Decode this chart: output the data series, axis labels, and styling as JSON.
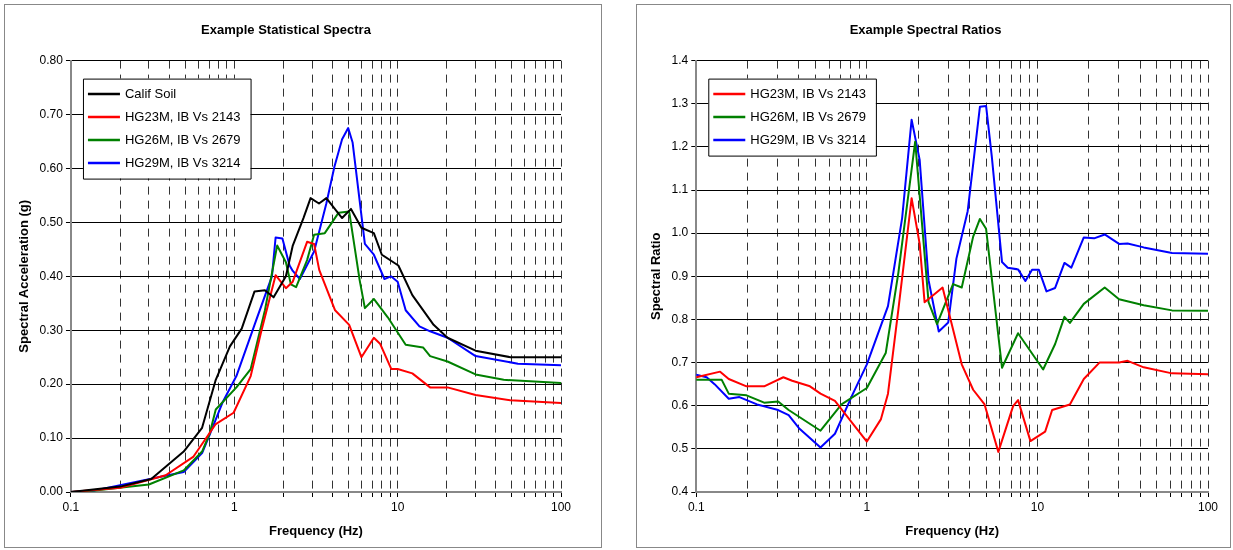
{
  "chart_data": [
    {
      "type": "line",
      "title": "Example Statistical Spectra",
      "xlabel": "Frequency (Hz)",
      "ylabel": "Spectral Acceleration (g)",
      "log": "x",
      "grid": true,
      "legend": "top left",
      "marker": "none",
      "line_style": "solid",
      "xlim": [
        0.1,
        100
      ],
      "xticks": [
        0.1,
        {
          "value": 0.2,
          "label": null
        },
        {
          "value": 0.3,
          "label": null
        },
        {
          "value": 0.4,
          "label": null
        },
        {
          "value": 0.5,
          "label": null
        },
        {
          "value": 0.6,
          "label": null
        },
        {
          "value": 0.7,
          "label": null
        },
        {
          "value": 0.8,
          "label": null
        },
        {
          "value": 0.9,
          "label": null
        },
        1,
        {
          "value": 2,
          "label": null
        },
        {
          "value": 3,
          "label": null
        },
        {
          "value": 4,
          "label": null
        },
        {
          "value": 5,
          "label": null
        },
        {
          "value": 6,
          "label": null
        },
        {
          "value": 7,
          "label": null
        },
        {
          "value": 8,
          "label": null
        },
        {
          "value": 9,
          "label": null
        },
        10,
        {
          "value": 20,
          "label": null
        },
        {
          "value": 30,
          "label": null
        },
        {
          "value": 40,
          "label": null
        },
        {
          "value": 50,
          "label": null
        },
        {
          "value": 60,
          "label": null
        },
        {
          "value": 70,
          "label": null
        },
        {
          "value": 80,
          "label": null
        },
        {
          "value": 90,
          "label": null
        },
        100
      ],
      "ylim": [
        0,
        0.8
      ],
      "yticks": [
        {
          "value": 0,
          "label": "0.00"
        },
        {
          "value": 0.1,
          "label": "0.10"
        },
        {
          "value": 0.2,
          "label": "0.20"
        },
        {
          "value": 0.3,
          "label": "0.30"
        },
        {
          "value": 0.4,
          "label": "0.40"
        },
        {
          "value": 0.5,
          "label": "0.50"
        },
        {
          "value": 0.6,
          "label": "0.60"
        },
        {
          "value": 0.7,
          "label": "0.70"
        },
        {
          "value": 0.8,
          "label": "0.80"
        }
      ],
      "series": [
        {
          "name": "Calif Soil",
          "color": "#000000",
          "x": [
            0.1,
            0.2,
            0.31,
            0.49,
            0.635,
            0.77,
            0.94,
            1.11,
            1.33,
            1.54,
            1.74,
            2.07,
            2.28,
            2.65,
            2.93,
            3.3,
            3.66,
            4.57,
            5.18,
            6.0,
            7.15,
            8.0,
            10.1,
            12.3,
            16.6,
            20.2,
            30,
            49,
            100
          ],
          "values": [
            0,
            0.01,
            0.024,
            0.075,
            0.119,
            0.208,
            0.27,
            0.303,
            0.372,
            0.374,
            0.361,
            0.4,
            0.457,
            0.508,
            0.545,
            0.535,
            0.545,
            0.508,
            0.525,
            0.49,
            0.48,
            0.44,
            0.42,
            0.365,
            0.31,
            0.286,
            0.262,
            0.25,
            0.25
          ]
        },
        {
          "name": "HG23M, IB Vs 2143",
          "color": "#ff0000",
          "x": [
            0.1,
            0.2,
            0.38,
            0.56,
            0.77,
            0.99,
            1.26,
            1.46,
            1.79,
            2.07,
            2.28,
            2.79,
            3.08,
            3.31,
            4.14,
            5.05,
            6.0,
            7.15,
            7.8,
            9.15,
            10,
            12.3,
            15.8,
            20.2,
            30,
            49,
            100
          ],
          "values": [
            0,
            0.008,
            0.031,
            0.065,
            0.126,
            0.147,
            0.215,
            0.297,
            0.402,
            0.378,
            0.39,
            0.464,
            0.46,
            0.412,
            0.337,
            0.31,
            0.25,
            0.286,
            0.275,
            0.228,
            0.228,
            0.22,
            0.194,
            0.194,
            0.18,
            0.17,
            0.165
          ]
        },
        {
          "name": "HG26M, IB Vs 2679",
          "color": "#008000",
          "x": [
            0.1,
            0.14,
            0.3,
            0.49,
            0.635,
            0.706,
            0.77,
            1.03,
            1.26,
            1.54,
            1.83,
            2.07,
            2.22,
            2.39,
            2.79,
            3.08,
            3.58,
            4.35,
            5.05,
            5.86,
            6.3,
            7.15,
            8.7,
            11.2,
            14.3,
            15.8,
            20.2,
            30,
            44.6,
            100
          ],
          "values": [
            0,
            0.003,
            0.014,
            0.04,
            0.075,
            0.108,
            0.153,
            0.194,
            0.228,
            0.337,
            0.457,
            0.426,
            0.385,
            0.38,
            0.43,
            0.477,
            0.48,
            0.518,
            0.52,
            0.392,
            0.341,
            0.358,
            0.324,
            0.273,
            0.268,
            0.252,
            0.242,
            0.218,
            0.208,
            0.202
          ]
        },
        {
          "name": "HG29M, IB Vs 3214",
          "color": "#0000ff",
          "x": [
            0.1,
            0.14,
            0.49,
            0.635,
            0.706,
            0.85,
            1.03,
            1.33,
            1.7,
            1.79,
            1.97,
            2.18,
            2.28,
            2.52,
            3.08,
            3.66,
            4.1,
            4.57,
            4.98,
            5.3,
            6.3,
            7.15,
            8.3,
            9.1,
            10,
            11.2,
            13.6,
            15.8,
            20.2,
            30,
            54.5,
            100
          ],
          "values": [
            0,
            0.003,
            0.037,
            0.072,
            0.106,
            0.167,
            0.215,
            0.31,
            0.4,
            0.472,
            0.47,
            0.42,
            0.41,
            0.395,
            0.446,
            0.535,
            0.603,
            0.654,
            0.675,
            0.648,
            0.46,
            0.44,
            0.395,
            0.4,
            0.39,
            0.337,
            0.307,
            0.298,
            0.286,
            0.252,
            0.238,
            0.235
          ]
        }
      ]
    },
    {
      "type": "line",
      "title": "Example Spectral Ratios",
      "xlabel": "Frequency (Hz)",
      "ylabel": "Spectral Ratio",
      "log": "x",
      "grid": true,
      "legend": "top left",
      "marker": "none",
      "line_style": "solid",
      "xlim": [
        0.1,
        100
      ],
      "xticks": [
        0.1,
        {
          "value": 0.2,
          "label": null
        },
        {
          "value": 0.3,
          "label": null
        },
        {
          "value": 0.4,
          "label": null
        },
        {
          "value": 0.5,
          "label": null
        },
        {
          "value": 0.6,
          "label": null
        },
        {
          "value": 0.7,
          "label": null
        },
        {
          "value": 0.8,
          "label": null
        },
        {
          "value": 0.9,
          "label": null
        },
        1,
        {
          "value": 2,
          "label": null
        },
        {
          "value": 3,
          "label": null
        },
        {
          "value": 4,
          "label": null
        },
        {
          "value": 5,
          "label": null
        },
        {
          "value": 6,
          "label": null
        },
        {
          "value": 7,
          "label": null
        },
        {
          "value": 8,
          "label": null
        },
        {
          "value": 9,
          "label": null
        },
        10,
        {
          "value": 20,
          "label": null
        },
        {
          "value": 30,
          "label": null
        },
        {
          "value": 40,
          "label": null
        },
        {
          "value": 50,
          "label": null
        },
        {
          "value": 60,
          "label": null
        },
        {
          "value": 70,
          "label": null
        },
        {
          "value": 80,
          "label": null
        },
        {
          "value": 90,
          "label": null
        },
        100
      ],
      "ylim": [
        0.4,
        1.4
      ],
      "yticks": [
        0.4,
        0.5,
        0.6,
        0.7,
        0.8,
        0.9,
        {
          "value": 1,
          "label": "1.0"
        },
        1.1,
        1.2,
        1.3,
        1.4
      ],
      "series": [
        {
          "name": "HG23M, IB Vs 2143",
          "color": "#ff0000",
          "x": [
            0.1,
            0.138,
            0.155,
            0.197,
            0.25,
            0.324,
            0.365,
            0.464,
            0.535,
            0.65,
            1.0,
            1.21,
            1.33,
            1.53,
            1.83,
            2.04,
            2.18,
            2.78,
            3.6,
            4.2,
            4.9,
            5.9,
            7.2,
            7.7,
            9.1,
            11.1,
            12.2,
            15.5,
            18.7,
            23.1,
            30.1,
            33.8,
            42,
            61.5,
            100
          ],
          "values": [
            0.666,
            0.679,
            0.662,
            0.645,
            0.645,
            0.666,
            0.658,
            0.645,
            0.628,
            0.611,
            0.517,
            0.569,
            0.628,
            0.823,
            1.081,
            0.975,
            0.84,
            0.874,
            0.696,
            0.637,
            0.603,
            0.493,
            0.599,
            0.613,
            0.518,
            0.54,
            0.59,
            0.603,
            0.662,
            0.7,
            0.7,
            0.704,
            0.689,
            0.675,
            0.673
          ]
        },
        {
          "name": "HG26M, IB Vs 2679",
          "color": "#008000",
          "x": [
            0.1,
            0.141,
            0.155,
            0.197,
            0.25,
            0.302,
            0.348,
            0.535,
            0.71,
            1.0,
            1.29,
            1.53,
            1.92,
            2.3,
            2.58,
            3.2,
            3.6,
            4.2,
            4.6,
            5.0,
            6.2,
            7.7,
            10.8,
            12.7,
            14.4,
            15.5,
            18.7,
            24.8,
            30.1,
            42,
            61.5,
            100
          ],
          "values": [
            0.66,
            0.66,
            0.628,
            0.624,
            0.607,
            0.61,
            0.59,
            0.542,
            0.603,
            0.641,
            0.722,
            0.908,
            1.212,
            0.84,
            0.789,
            0.882,
            0.874,
            0.992,
            1.033,
            1.01,
            0.688,
            0.768,
            0.684,
            0.743,
            0.806,
            0.792,
            0.836,
            0.874,
            0.847,
            0.833,
            0.821,
            0.82
          ]
        },
        {
          "name": "HG29M, IB Vs 3214",
          "color": "#0000ff",
          "x": [
            0.1,
            0.115,
            0.128,
            0.155,
            0.179,
            0.227,
            0.302,
            0.348,
            0.4,
            0.535,
            0.65,
            0.82,
            1.0,
            1.33,
            1.61,
            1.83,
            2.04,
            2.3,
            2.64,
            3.0,
            3.35,
            3.9,
            4.6,
            5.0,
            5.4,
            6.2,
            6.7,
            7.7,
            8.5,
            9.3,
            10.2,
            11.3,
            12.7,
            14.4,
            15.8,
            18.7,
            21.5,
            24.8,
            30.1,
            33.8,
            42,
            61.5,
            100
          ],
          "values": [
            0.672,
            0.666,
            0.65,
            0.616,
            0.62,
            0.603,
            0.59,
            0.578,
            0.548,
            0.503,
            0.535,
            0.624,
            0.696,
            0.831,
            1.035,
            1.263,
            1.17,
            0.891,
            0.772,
            0.793,
            0.941,
            1.051,
            1.293,
            1.295,
            1.178,
            0.933,
            0.92,
            0.916,
            0.889,
            0.915,
            0.915,
            0.865,
            0.873,
            0.931,
            0.92,
            0.99,
            0.988,
            0.997,
            0.975,
            0.976,
            0.967,
            0.954,
            0.952
          ]
        }
      ]
    }
  ]
}
